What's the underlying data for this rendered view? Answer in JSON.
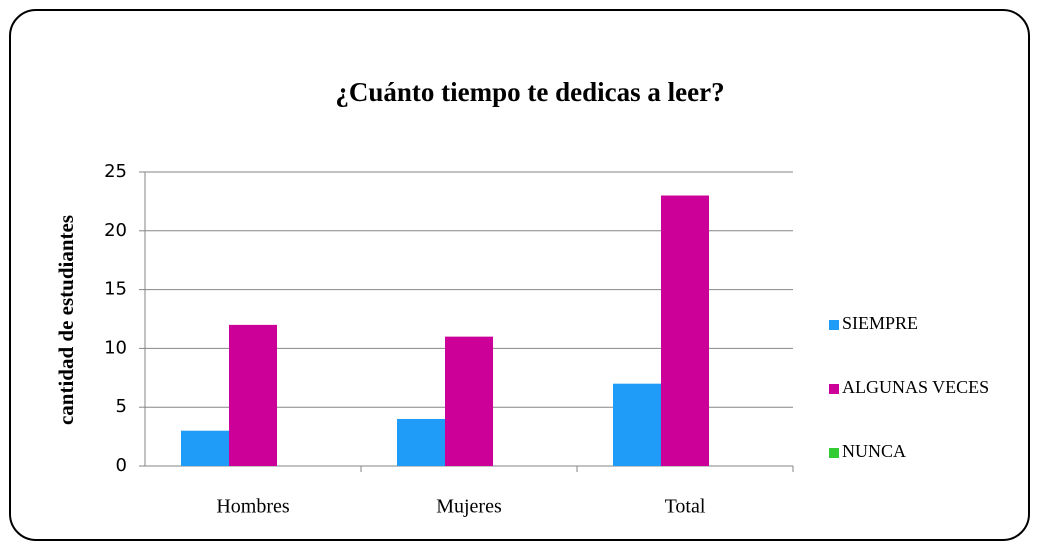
{
  "chart_data": {
    "type": "bar",
    "title": "¿Cuánto tiempo te dedicas a leer?",
    "y_label": "cantidad de estudiantes",
    "categories": [
      "Hombres",
      "Mujeres",
      "Total"
    ],
    "series": [
      {
        "name": "SIEMPRE",
        "color": "#1e9cf8",
        "values": [
          3,
          4,
          7
        ]
      },
      {
        "name": "ALGUNAS VECES",
        "color": "#cc0099",
        "values": [
          12,
          11,
          23
        ]
      },
      {
        "name": "NUNCA",
        "color": "#33cc33",
        "values": [
          0,
          0,
          0
        ]
      }
    ],
    "ylim": [
      0,
      25
    ],
    "yticks": [
      0,
      5,
      10,
      15,
      20,
      25
    ],
    "grid": true,
    "legend": "right"
  }
}
